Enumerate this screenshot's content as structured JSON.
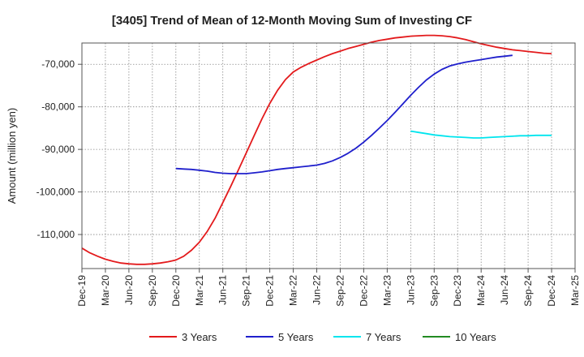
{
  "chart_data": {
    "type": "line",
    "title": "[3405]  Trend of Mean of 12-Month Moving Sum of Investing CF",
    "ylabel": "Amount (million yen)",
    "xlabel": "",
    "x_ticks": [
      "Dec-19",
      "Mar-20",
      "Jun-20",
      "Sep-20",
      "Dec-20",
      "Mar-21",
      "Jun-21",
      "Sep-21",
      "Dec-21",
      "Mar-22",
      "Jun-22",
      "Sep-22",
      "Dec-22",
      "Mar-23",
      "Jun-23",
      "Sep-23",
      "Dec-23",
      "Mar-24",
      "Jun-24",
      "Sep-24",
      "Dec-24",
      "Mar-25"
    ],
    "y_ticks": [
      -110000,
      -100000,
      -90000,
      -80000,
      -70000
    ],
    "y_tick_labels": [
      "-110,000",
      "-100,000",
      "-90,000",
      "-80,000",
      "-70,000"
    ],
    "ylim": [
      -118000,
      -65000
    ],
    "grid": true,
    "legend_position": "bottom",
    "series": [
      {
        "name": "3 Years",
        "color": "#e31a1c",
        "points": [
          [
            "Dec-19",
            -113200
          ],
          [
            "Jan-20",
            -114300
          ],
          [
            "Feb-20",
            -115100
          ],
          [
            "Mar-20",
            -115800
          ],
          [
            "Apr-20",
            -116300
          ],
          [
            "May-20",
            -116700
          ],
          [
            "Jun-20",
            -116900
          ],
          [
            "Jul-20",
            -117000
          ],
          [
            "Aug-20",
            -117000
          ],
          [
            "Sep-20",
            -116900
          ],
          [
            "Oct-20",
            -116700
          ],
          [
            "Nov-20",
            -116400
          ],
          [
            "Dec-20",
            -116000
          ],
          [
            "Jan-21",
            -115100
          ],
          [
            "Feb-21",
            -113700
          ],
          [
            "Mar-21",
            -111800
          ],
          [
            "Apr-21",
            -109300
          ],
          [
            "May-21",
            -106200
          ],
          [
            "Jun-21",
            -102500
          ],
          [
            "Jul-21",
            -98700
          ],
          [
            "Aug-21",
            -94800
          ],
          [
            "Sep-21",
            -90800
          ],
          [
            "Oct-21",
            -86800
          ],
          [
            "Nov-21",
            -82800
          ],
          [
            "Dec-21",
            -79200
          ],
          [
            "Jan-22",
            -76100
          ],
          [
            "Feb-22",
            -73600
          ],
          [
            "Mar-22",
            -71800
          ],
          [
            "Apr-22",
            -70700
          ],
          [
            "May-22",
            -69800
          ],
          [
            "Jun-22",
            -69000
          ],
          [
            "Jul-22",
            -68200
          ],
          [
            "Aug-22",
            -67500
          ],
          [
            "Sep-22",
            -66900
          ],
          [
            "Oct-22",
            -66300
          ],
          [
            "Nov-22",
            -65800
          ],
          [
            "Dec-22",
            -65300
          ],
          [
            "Jan-23",
            -64800
          ],
          [
            "Feb-23",
            -64400
          ],
          [
            "Mar-23",
            -64100
          ],
          [
            "Apr-23",
            -63800
          ],
          [
            "May-23",
            -63600
          ],
          [
            "Jun-23",
            -63400
          ],
          [
            "Jul-23",
            -63300
          ],
          [
            "Aug-23",
            -63200
          ],
          [
            "Sep-23",
            -63200
          ],
          [
            "Oct-23",
            -63300
          ],
          [
            "Nov-23",
            -63500
          ],
          [
            "Dec-23",
            -63800
          ],
          [
            "Jan-24",
            -64200
          ],
          [
            "Feb-24",
            -64700
          ],
          [
            "Mar-24",
            -65200
          ],
          [
            "Apr-24",
            -65600
          ],
          [
            "May-24",
            -66000
          ],
          [
            "Jun-24",
            -66300
          ],
          [
            "Jul-24",
            -66600
          ],
          [
            "Aug-24",
            -66800
          ],
          [
            "Sep-24",
            -67000
          ],
          [
            "Oct-24",
            -67200
          ],
          [
            "Nov-24",
            -67400
          ],
          [
            "Dec-24",
            -67500
          ]
        ]
      },
      {
        "name": "5 Years",
        "color": "#1f1fcc",
        "points": [
          [
            "Dec-20",
            -94500
          ],
          [
            "Jan-21",
            -94600
          ],
          [
            "Feb-21",
            -94700
          ],
          [
            "Mar-21",
            -94900
          ],
          [
            "Apr-21",
            -95100
          ],
          [
            "May-21",
            -95400
          ],
          [
            "Jun-21",
            -95600
          ],
          [
            "Jul-21",
            -95700
          ],
          [
            "Aug-21",
            -95700
          ],
          [
            "Sep-21",
            -95700
          ],
          [
            "Oct-21",
            -95500
          ],
          [
            "Nov-21",
            -95300
          ],
          [
            "Dec-21",
            -95000
          ],
          [
            "Jan-22",
            -94700
          ],
          [
            "Feb-22",
            -94500
          ],
          [
            "Mar-22",
            -94300
          ],
          [
            "Apr-22",
            -94100
          ],
          [
            "May-22",
            -93900
          ],
          [
            "Jun-22",
            -93700
          ],
          [
            "Jul-22",
            -93300
          ],
          [
            "Aug-22",
            -92700
          ],
          [
            "Sep-22",
            -91900
          ],
          [
            "Oct-22",
            -90900
          ],
          [
            "Nov-22",
            -89700
          ],
          [
            "Dec-22",
            -88300
          ],
          [
            "Jan-23",
            -86700
          ],
          [
            "Feb-23",
            -85000
          ],
          [
            "Mar-23",
            -83200
          ],
          [
            "Apr-23",
            -81300
          ],
          [
            "May-23",
            -79300
          ],
          [
            "Jun-23",
            -77300
          ],
          [
            "Jul-23",
            -75400
          ],
          [
            "Aug-23",
            -73700
          ],
          [
            "Sep-23",
            -72300
          ],
          [
            "Oct-23",
            -71200
          ],
          [
            "Nov-23",
            -70400
          ],
          [
            "Dec-23",
            -69900
          ],
          [
            "Jan-24",
            -69500
          ],
          [
            "Feb-24",
            -69200
          ],
          [
            "Mar-24",
            -68900
          ],
          [
            "Apr-24",
            -68600
          ],
          [
            "May-24",
            -68300
          ],
          [
            "Jun-24",
            -68100
          ],
          [
            "Jul-24",
            -67900
          ]
        ]
      },
      {
        "name": "7 Years",
        "color": "#00e5ee",
        "points": [
          [
            "Jun-23",
            -85700
          ],
          [
            "Jul-23",
            -86000
          ],
          [
            "Aug-23",
            -86300
          ],
          [
            "Sep-23",
            -86600
          ],
          [
            "Oct-23",
            -86800
          ],
          [
            "Nov-23",
            -87000
          ],
          [
            "Dec-23",
            -87100
          ],
          [
            "Jan-24",
            -87200
          ],
          [
            "Feb-24",
            -87300
          ],
          [
            "Mar-24",
            -87300
          ],
          [
            "Apr-24",
            -87200
          ],
          [
            "May-24",
            -87100
          ],
          [
            "Jun-24",
            -87000
          ],
          [
            "Jul-24",
            -86900
          ],
          [
            "Aug-24",
            -86800
          ],
          [
            "Sep-24",
            -86800
          ],
          [
            "Oct-24",
            -86700
          ],
          [
            "Nov-24",
            -86700
          ],
          [
            "Dec-24",
            -86700
          ]
        ]
      },
      {
        "name": "10 Years",
        "color": "#228b22",
        "points": []
      }
    ]
  }
}
